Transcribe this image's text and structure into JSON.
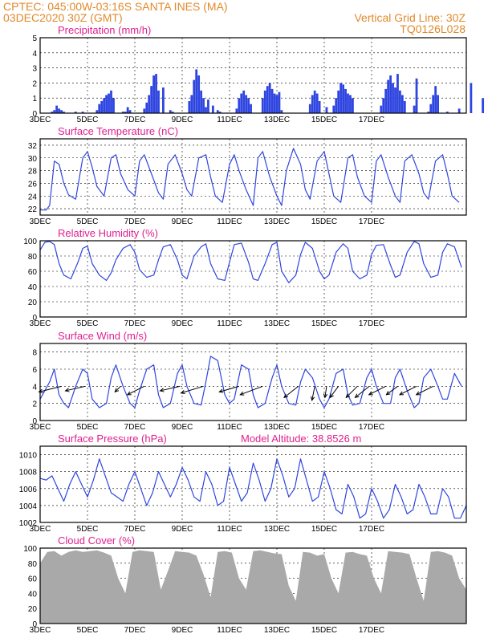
{
  "header": {
    "line1_left": "CPTEC:   045:00W-03:16S   SANTA INES (MA)",
    "line2_left": "03DEC2020 30Z (GMT)",
    "line1_right": "Vertical Grid Line: 30Z",
    "line2_right": "TQ0126L028"
  },
  "x_tick_labels": [
    "3DEC",
    "5DEC",
    "7DEC",
    "9DEC",
    "11DEC",
    "13DEC",
    "15DEC",
    "17DEC"
  ],
  "colors": {
    "header": "#e08a2c",
    "title": "#e0208f",
    "series": "#2f45e0",
    "wind_arrow": "#000000",
    "cloud": "#a9a9a9",
    "frame": "#000000"
  },
  "chart_data": [
    {
      "type": "bar",
      "title": "Precipitation (mm/h)",
      "x_unit": "days since 03DEC2020 00Z",
      "ylim": [
        0,
        5
      ],
      "yticks": [
        0,
        1,
        2,
        3,
        4,
        5
      ],
      "grid": true,
      "x": [
        0.5,
        0.6,
        0.7,
        0.8,
        0.9,
        1.0,
        1.5,
        1.8,
        2.4,
        2.5,
        2.6,
        2.7,
        2.8,
        2.9,
        3.0,
        3.1,
        3.5,
        3.6,
        3.7,
        3.8,
        4.4,
        4.5,
        4.6,
        4.7,
        4.8,
        4.9,
        5.0,
        5.2,
        5.5,
        5.6,
        6.3,
        6.4,
        6.5,
        6.6,
        6.7,
        6.8,
        6.9,
        7.0,
        7.1,
        7.3,
        7.5,
        7.6,
        8.3,
        8.4,
        8.5,
        8.6,
        8.7,
        8.8,
        8.9,
        9.4,
        9.5,
        9.6,
        9.7,
        9.8,
        9.9,
        10.0,
        10.1,
        10.2,
        11.4,
        11.5,
        11.6,
        11.7,
        11.8,
        12.1,
        12.4,
        12.5,
        12.6,
        12.7,
        12.8,
        12.9,
        13.0,
        13.1,
        13.2,
        14.4,
        14.5,
        14.6,
        14.7,
        14.8,
        14.9,
        15.0,
        15.1,
        15.2,
        15.3,
        15.4,
        15.8,
        15.9,
        16.4,
        16.5,
        16.6,
        16.7,
        16.8,
        17.2,
        17.7,
        18.2,
        18.7
      ],
      "y": [
        0.1,
        0.2,
        0.5,
        0.3,
        0.2,
        0.1,
        0.1,
        0.1,
        0.2,
        0.6,
        0.8,
        1.0,
        1.2,
        1.3,
        1.5,
        1.0,
        0.1,
        0.1,
        0.4,
        0.2,
        0.3,
        0.7,
        1.2,
        1.8,
        2.5,
        2.6,
        1.5,
        1.7,
        0.2,
        0.1,
        0.8,
        1.2,
        2.2,
        2.9,
        2.5,
        1.5,
        1.0,
        0.4,
        0.9,
        0.5,
        0.2,
        0.1,
        0.3,
        1.0,
        1.3,
        1.5,
        1.2,
        1.0,
        0.6,
        1.0,
        1.5,
        1.8,
        2.0,
        1.6,
        1.3,
        1.2,
        1.4,
        0.2,
        0.6,
        1.2,
        1.5,
        1.3,
        0.8,
        0.4,
        0.5,
        1.0,
        1.5,
        2.0,
        1.9,
        1.6,
        1.3,
        1.2,
        1.0,
        0.5,
        1.0,
        1.6,
        2.2,
        2.5,
        2.0,
        1.7,
        2.6,
        1.5,
        1.2,
        0.8,
        0.5,
        2.3,
        0.1,
        0.6,
        1.2,
        1.8,
        1.2,
        0.1,
        0.3,
        2.0,
        1.0
      ]
    },
    {
      "type": "line",
      "title": "Surface Temperature (nC)",
      "x_unit": "days since 03DEC2020 00Z",
      "ylim": [
        21,
        33
      ],
      "yticks": [
        22,
        24,
        26,
        28,
        30,
        32
      ],
      "grid": true,
      "x": [
        0.0,
        0.25,
        0.4,
        0.6,
        0.8,
        1.0,
        1.2,
        1.5,
        1.8,
        2.0,
        2.2,
        2.4,
        2.7,
        3.0,
        3.2,
        3.4,
        3.7,
        4.0,
        4.2,
        4.4,
        4.7,
        5.0,
        5.2,
        5.4,
        5.7,
        6.0,
        6.2,
        6.4,
        6.7,
        7.0,
        7.2,
        7.4,
        7.7,
        8.0,
        8.2,
        8.4,
        8.7,
        9.0,
        9.2,
        9.4,
        9.7,
        10.0,
        10.2,
        10.4,
        10.7,
        11.0,
        11.2,
        11.4,
        11.7,
        12.0,
        12.2,
        12.4,
        12.7,
        13.0,
        13.2,
        13.4,
        13.7,
        14.0,
        14.2,
        14.4,
        14.7,
        15.0,
        15.2,
        15.4,
        15.7,
        16.0,
        16.2,
        16.4,
        16.7,
        17.0,
        17.2,
        17.4,
        17.7
      ],
      "y": [
        21.8,
        21.8,
        22.5,
        29.5,
        29.0,
        26.0,
        24.2,
        23.5,
        30.0,
        31.0,
        28.5,
        25.5,
        24.0,
        30.0,
        30.5,
        27.5,
        25.0,
        24.0,
        29.5,
        30.5,
        27.5,
        24.5,
        23.5,
        29.0,
        30.5,
        27.5,
        25.0,
        24.0,
        30.0,
        30.5,
        27.0,
        24.0,
        23.0,
        29.0,
        30.5,
        28.0,
        25.0,
        22.5,
        30.0,
        31.0,
        27.0,
        24.0,
        22.5,
        28.0,
        31.5,
        29.0,
        25.0,
        23.5,
        29.5,
        31.0,
        27.5,
        24.0,
        23.0,
        30.0,
        30.5,
        27.0,
        24.0,
        23.0,
        29.5,
        30.5,
        27.0,
        24.0,
        23.0,
        29.5,
        30.5,
        27.5,
        24.5,
        23.5,
        29.5,
        30.5,
        27.5,
        24.0,
        23.0
      ]
    },
    {
      "type": "line",
      "title": "Relative Humidity (%)",
      "x_unit": "days since 03DEC2020 00Z",
      "ylim": [
        0,
        100
      ],
      "yticks": [
        0,
        20,
        40,
        60,
        80,
        100
      ],
      "grid": true,
      "x": [
        0.0,
        0.2,
        0.4,
        0.6,
        0.8,
        1.0,
        1.3,
        1.6,
        1.8,
        2.0,
        2.2,
        2.5,
        2.8,
        3.0,
        3.2,
        3.5,
        3.8,
        4.0,
        4.2,
        4.5,
        4.8,
        5.0,
        5.2,
        5.5,
        5.8,
        6.0,
        6.2,
        6.5,
        6.8,
        7.0,
        7.2,
        7.5,
        7.8,
        8.0,
        8.2,
        8.5,
        8.8,
        9.0,
        9.2,
        9.5,
        9.8,
        10.0,
        10.2,
        10.5,
        10.8,
        11.0,
        11.2,
        11.5,
        11.8,
        12.0,
        12.2,
        12.5,
        12.8,
        13.0,
        13.2,
        13.5,
        13.8,
        14.0,
        14.2,
        14.5,
        14.8,
        15.0,
        15.2,
        15.5,
        15.8,
        16.0,
        16.2,
        16.5,
        16.8,
        17.0,
        17.2,
        17.5,
        17.8
      ],
      "y": [
        88,
        98,
        99,
        95,
        70,
        55,
        50,
        72,
        90,
        93,
        70,
        55,
        48,
        58,
        75,
        90,
        95,
        85,
        62,
        52,
        55,
        75,
        92,
        95,
        75,
        55,
        50,
        80,
        92,
        96,
        70,
        50,
        48,
        72,
        95,
        97,
        72,
        50,
        48,
        70,
        95,
        98,
        60,
        45,
        55,
        82,
        98,
        90,
        60,
        50,
        55,
        85,
        96,
        90,
        60,
        50,
        55,
        82,
        94,
        95,
        68,
        52,
        55,
        85,
        99,
        96,
        70,
        52,
        55,
        85,
        96,
        92,
        65
      ]
    },
    {
      "type": "line",
      "title": "Surface Wind (m/s)",
      "x_unit": "days since 03DEC2020 00Z",
      "ylim": [
        0,
        9
      ],
      "yticks": [
        0,
        2,
        4,
        6,
        8
      ],
      "grid": true,
      "x": [
        0.0,
        0.2,
        0.4,
        0.6,
        0.8,
        1.0,
        1.2,
        1.5,
        1.8,
        2.0,
        2.2,
        2.5,
        2.8,
        3.0,
        3.2,
        3.5,
        3.8,
        4.0,
        4.2,
        4.5,
        4.8,
        5.0,
        5.2,
        5.5,
        5.8,
        6.0,
        6.2,
        6.5,
        6.8,
        7.0,
        7.2,
        7.5,
        7.8,
        8.0,
        8.2,
        8.5,
        8.8,
        9.0,
        9.2,
        9.5,
        9.8,
        10.0,
        10.2,
        10.5,
        10.8,
        11.0,
        11.2,
        11.5,
        11.8,
        12.0,
        12.2,
        12.5,
        12.8,
        13.0,
        13.2,
        13.5,
        13.8,
        14.0,
        14.2,
        14.5,
        14.8,
        15.0,
        15.2,
        15.5,
        15.8,
        16.0,
        16.2,
        16.5,
        16.8,
        17.0,
        17.2,
        17.5,
        17.8
      ],
      "y": [
        2.5,
        3.5,
        4.5,
        6.0,
        3.0,
        2.0,
        1.5,
        4.0,
        6.0,
        5.5,
        2.5,
        1.5,
        2.0,
        5.0,
        6.5,
        4.0,
        2.0,
        1.5,
        3.5,
        6.0,
        6.5,
        3.0,
        1.5,
        2.0,
        5.5,
        6.5,
        4.0,
        2.0,
        1.8,
        4.5,
        7.5,
        7.0,
        3.0,
        2.0,
        2.5,
        6.5,
        6.0,
        3.0,
        1.5,
        2.0,
        5.0,
        6.5,
        4.0,
        2.0,
        1.8,
        4.5,
        6.0,
        5.0,
        2.5,
        1.5,
        2.5,
        5.5,
        6.0,
        3.0,
        1.8,
        2.0,
        5.0,
        6.0,
        4.0,
        2.0,
        2.0,
        5.0,
        6.0,
        3.5,
        1.5,
        2.0,
        5.0,
        6.0,
        4.0,
        2.5,
        2.5,
        5.5,
        4.0
      ],
      "wind_arrows": {
        "x": [
          0.9,
          1.9,
          3.4,
          4.4,
          5.9,
          6.9,
          8.4,
          9.4,
          10.9,
          11.6,
          12.1,
          12.6,
          13.4,
          13.9,
          14.6,
          15.1,
          15.9,
          16.6
        ],
        "u": [
          -4.0,
          -3.5,
          -1.0,
          -3.0,
          -3.5,
          -4.0,
          -3.5,
          -4.0,
          -2.5,
          -0.5,
          -0.3,
          -1.5,
          -2.0,
          -2.5,
          -3.0,
          -2.0,
          -3.0,
          -3.0
        ],
        "v": [
          -1.0,
          -0.8,
          -1.0,
          -1.5,
          -0.8,
          -1.2,
          -1.0,
          -1.5,
          -2.0,
          -2.5,
          -2.0,
          -2.0,
          -2.0,
          -2.0,
          -1.5,
          -1.5,
          -1.5,
          -1.5
        ]
      }
    },
    {
      "type": "line",
      "title": "Surface Pressure (hPa)",
      "annotation": "Model Altitude: 38.8526 m",
      "x_unit": "days since 03DEC2020 00Z",
      "ylim": [
        1002,
        1011
      ],
      "yticks": [
        1002,
        1004,
        1006,
        1008,
        1010
      ],
      "grid": true,
      "x": [
        0.0,
        0.25,
        0.5,
        0.75,
        1.0,
        1.25,
        1.5,
        1.75,
        2.0,
        2.25,
        2.5,
        2.75,
        3.0,
        3.25,
        3.5,
        3.75,
        4.0,
        4.25,
        4.5,
        4.75,
        5.0,
        5.25,
        5.5,
        5.75,
        6.0,
        6.25,
        6.5,
        6.75,
        7.0,
        7.25,
        7.5,
        7.75,
        8.0,
        8.25,
        8.5,
        8.75,
        9.0,
        9.25,
        9.5,
        9.75,
        10.0,
        10.25,
        10.5,
        10.75,
        11.0,
        11.25,
        11.5,
        11.75,
        12.0,
        12.25,
        12.5,
        12.75,
        13.0,
        13.25,
        13.5,
        13.75,
        14.0,
        14.25,
        14.5,
        14.75,
        15.0,
        15.25,
        15.5,
        15.75,
        16.0,
        16.25,
        16.5,
        16.75,
        17.0,
        17.25,
        17.5,
        17.75,
        18.0
      ],
      "y": [
        1007.2,
        1007.0,
        1007.5,
        1006.0,
        1004.5,
        1006.5,
        1008.0,
        1006.5,
        1005.0,
        1007.0,
        1009.5,
        1007.5,
        1005.5,
        1005.0,
        1004.5,
        1006.5,
        1008.0,
        1006.0,
        1004.0,
        1005.5,
        1008.0,
        1006.5,
        1005.0,
        1006.5,
        1008.5,
        1007.0,
        1005.0,
        1004.5,
        1008.0,
        1006.5,
        1004.0,
        1004.5,
        1008.5,
        1006.5,
        1004.5,
        1005.5,
        1009.0,
        1007.0,
        1004.5,
        1006.0,
        1009.5,
        1007.5,
        1005.0,
        1006.0,
        1009.5,
        1007.0,
        1004.5,
        1005.0,
        1008.0,
        1006.0,
        1003.5,
        1003.0,
        1006.5,
        1005.0,
        1002.5,
        1003.0,
        1006.0,
        1004.5,
        1002.5,
        1003.5,
        1006.5,
        1005.0,
        1003.0,
        1003.5,
        1006.5,
        1005.0,
        1003.0,
        1003.0,
        1006.0,
        1005.0,
        1002.5,
        1002.5,
        1004.0
      ]
    },
    {
      "type": "area",
      "title": "Cloud Cover (%)",
      "x_unit": "days since 03DEC2020 00Z",
      "ylim": [
        0,
        100
      ],
      "yticks": [
        0,
        20,
        40,
        60,
        80,
        100
      ],
      "grid": true,
      "x": [
        0.0,
        0.3,
        0.6,
        0.9,
        1.2,
        1.5,
        1.8,
        2.1,
        2.4,
        2.7,
        3.0,
        3.3,
        3.6,
        3.9,
        4.2,
        4.5,
        4.8,
        5.1,
        5.4,
        5.7,
        6.0,
        6.3,
        6.6,
        6.9,
        7.2,
        7.5,
        7.8,
        8.1,
        8.4,
        8.7,
        9.0,
        9.3,
        9.6,
        9.9,
        10.2,
        10.5,
        10.8,
        11.1,
        11.4,
        11.7,
        12.0,
        12.3,
        12.6,
        12.9,
        13.2,
        13.5,
        13.8,
        14.1,
        14.4,
        14.7,
        15.0,
        15.3,
        15.6,
        15.9,
        16.2,
        16.5,
        16.8,
        17.1,
        17.4,
        17.7,
        18.0
      ],
      "y": [
        80,
        95,
        96,
        90,
        95,
        97,
        95,
        96,
        97,
        94,
        90,
        60,
        40,
        95,
        97,
        96,
        95,
        45,
        70,
        96,
        95,
        94,
        90,
        65,
        35,
        95,
        96,
        94,
        60,
        45,
        96,
        97,
        95,
        93,
        92,
        50,
        30,
        95,
        94,
        90,
        92,
        60,
        40,
        94,
        95,
        92,
        90,
        60,
        40,
        96,
        95,
        94,
        92,
        60,
        30,
        95,
        96,
        94,
        90,
        60,
        45
      ]
    }
  ]
}
